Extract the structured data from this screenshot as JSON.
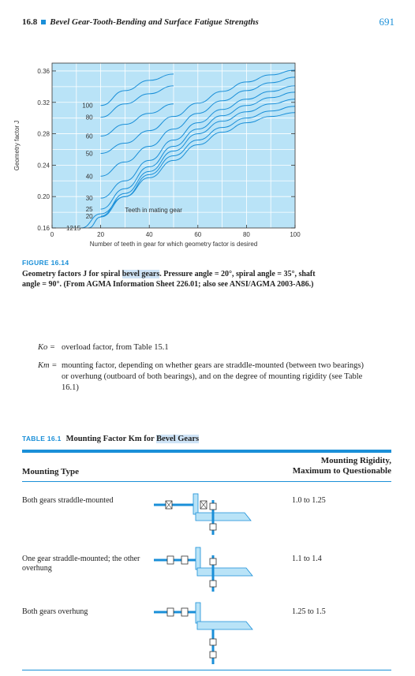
{
  "header": {
    "section_number": "16.8",
    "title": "Bevel Gear-Tooth-Bending and Surface Fatigue Strengths",
    "page_number": "691"
  },
  "chart_data": {
    "type": "line",
    "title": "",
    "xlabel": "Number of teeth in gear for which geometry factor is desired",
    "ylabel": "Geometry factor J",
    "xlim": [
      0,
      100
    ],
    "ylim": [
      0.16,
      0.37
    ],
    "x_ticks": [
      "0",
      "20",
      "40",
      "60",
      "80",
      "100"
    ],
    "y_ticks": [
      "0.16",
      "0.20",
      "0.24",
      "0.28",
      "0.32",
      "0.36"
    ],
    "grid": true,
    "background": "#b9e3f7",
    "line_color": "#1a8fd8",
    "annotation": "Teeth in mating gear",
    "series": [
      {
        "name": "12",
        "x": [
          12,
          20,
          30,
          40,
          50,
          60,
          70,
          80,
          90,
          100
        ],
        "y": [
          0.16,
          0.178,
          0.2,
          0.224,
          0.246,
          0.266,
          0.282,
          0.294,
          0.302,
          0.307
        ]
      },
      {
        "name": "15",
        "x": [
          15,
          20,
          30,
          40,
          50,
          60,
          70,
          80,
          90,
          100
        ],
        "y": [
          0.16,
          0.174,
          0.2,
          0.228,
          0.252,
          0.272,
          0.288,
          0.3,
          0.309,
          0.315
        ]
      },
      {
        "name": "20",
        "x": [
          20,
          30,
          40,
          50,
          60,
          70,
          80,
          90,
          100
        ],
        "y": [
          0.175,
          0.204,
          0.232,
          0.258,
          0.28,
          0.296,
          0.308,
          0.318,
          0.324
        ]
      },
      {
        "name": "25",
        "x": [
          20,
          30,
          40,
          50,
          60,
          70,
          80,
          90,
          100
        ],
        "y": [
          0.184,
          0.21,
          0.238,
          0.264,
          0.286,
          0.303,
          0.316,
          0.326,
          0.333
        ]
      },
      {
        "name": "30",
        "x": [
          20,
          30,
          40,
          50,
          60,
          70,
          80,
          90,
          100
        ],
        "y": [
          0.198,
          0.22,
          0.246,
          0.272,
          0.294,
          0.311,
          0.324,
          0.334,
          0.341
        ]
      },
      {
        "name": "40",
        "x": [
          20,
          30,
          40,
          50,
          60,
          70,
          80,
          90,
          100
        ],
        "y": [
          0.226,
          0.244,
          0.264,
          0.286,
          0.306,
          0.322,
          0.335,
          0.345,
          0.352
        ]
      },
      {
        "name": "50",
        "x": [
          20,
          30,
          40,
          50,
          60,
          70,
          80,
          90,
          100
        ],
        "y": [
          0.255,
          0.268,
          0.284,
          0.302,
          0.319,
          0.334,
          0.346,
          0.355,
          0.361
        ]
      },
      {
        "name": "60",
        "x": [
          20,
          30,
          40,
          50
        ],
        "y": [
          0.277,
          0.292,
          0.306,
          0.318
        ]
      },
      {
        "name": "80",
        "x": [
          20,
          30,
          40,
          50
        ],
        "y": [
          0.301,
          0.318,
          0.331,
          0.341
        ]
      },
      {
        "name": "100",
        "x": [
          20,
          30,
          40,
          50
        ],
        "y": [
          0.316,
          0.335,
          0.348,
          0.356
        ]
      }
    ]
  },
  "figure": {
    "label": "FIGURE 16.14",
    "caption_before": "Geometry factors J for spiral ",
    "caption_highlight": "bevel gears",
    "caption_after": ". Pressure angle = 20°, spiral angle = 35°, shaft angle = 90°. (From AGMA Information Sheet 226.01; also see ANSI/AGMA 2003-A86.)"
  },
  "variables": [
    {
      "symbol": "Ko =",
      "description": "overload factor, from Table 15.1"
    },
    {
      "symbol": "Km =",
      "description": "mounting factor, depending on whether gears are straddle-mounted (between two bearings) or overhung (outboard of both bearings), and on the degree of mounting rigidity (see Table 16.1)"
    }
  ],
  "table": {
    "label": "TABLE 16.1",
    "title_before": "Mounting Factor Km for ",
    "title_highlight": "Bevel Gears",
    "col_left": "Mounting Type",
    "col_right_line1": "Mounting Rigidity,",
    "col_right_line2": "Maximum to Questionable",
    "rows": [
      {
        "type": "Both gears straddle-mounted",
        "value": "1.0 to 1.25"
      },
      {
        "type": "One gear straddle-mounted; the other overhung",
        "value": "1.1 to 1.4"
      },
      {
        "type": "Both gears overhung",
        "value": "1.25 to 1.5"
      }
    ]
  }
}
